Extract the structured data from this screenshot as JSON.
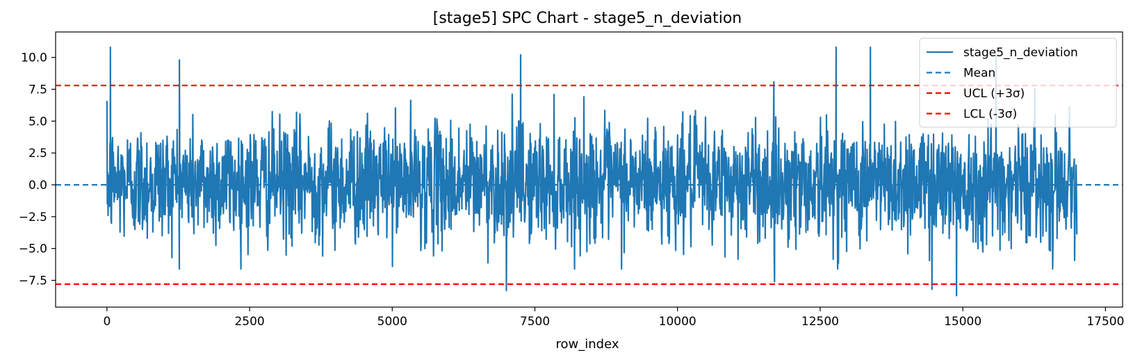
{
  "chart_data": {
    "type": "line",
    "title": "[stage5] SPC Chart - stage5_n_deviation",
    "xlabel": "row_index",
    "ylabel": "",
    "xlim": [
      -900,
      17800
    ],
    "ylim": [
      -9.6,
      12.0
    ],
    "x_ticks": [
      0,
      2500,
      5000,
      7500,
      10000,
      12500,
      15000,
      17500
    ],
    "x_tick_labels": [
      "0",
      "2500",
      "5000",
      "7500",
      "10000",
      "12500",
      "15000",
      "17500"
    ],
    "y_ticks": [
      10.0,
      7.5,
      5.0,
      2.5,
      0.0,
      -2.5,
      -5.0,
      -7.5
    ],
    "y_tick_labels": [
      "10.0",
      "7.5",
      "5.0",
      "2.5",
      "0.0",
      "−2.5",
      "−5.0",
      "−7.5"
    ],
    "grid": false,
    "legend_position": "top-right",
    "series": [
      {
        "name": "stage5_n_deviation",
        "color": "#1f77b4",
        "style": "solid",
        "x_range": [
          0,
          16999
        ],
        "typical_band": [
          -4.5,
          5.5
        ],
        "notable_points": [
          {
            "x": 60,
            "y": 10.8
          },
          {
            "x": 1270,
            "y": 9.8
          },
          {
            "x": 7250,
            "y": 10.2
          },
          {
            "x": 12780,
            "y": 10.8
          },
          {
            "x": 13380,
            "y": 10.8
          },
          {
            "x": 15580,
            "y": 10.2
          },
          {
            "x": 7000,
            "y": -8.3
          },
          {
            "x": 14460,
            "y": -8.2
          },
          {
            "x": 14890,
            "y": -8.7
          },
          {
            "x": 11700,
            "y": -7.6
          }
        ]
      },
      {
        "name": "Mean",
        "color": "#1f77b4",
        "style": "dashed",
        "value": 0.0
      },
      {
        "name": "UCL (+3σ)",
        "color": "#ff0000",
        "style": "dashed",
        "value": 7.8
      },
      {
        "name": "LCL (-3σ)",
        "color": "#ff0000",
        "style": "dashed",
        "value": -7.8
      }
    ]
  }
}
